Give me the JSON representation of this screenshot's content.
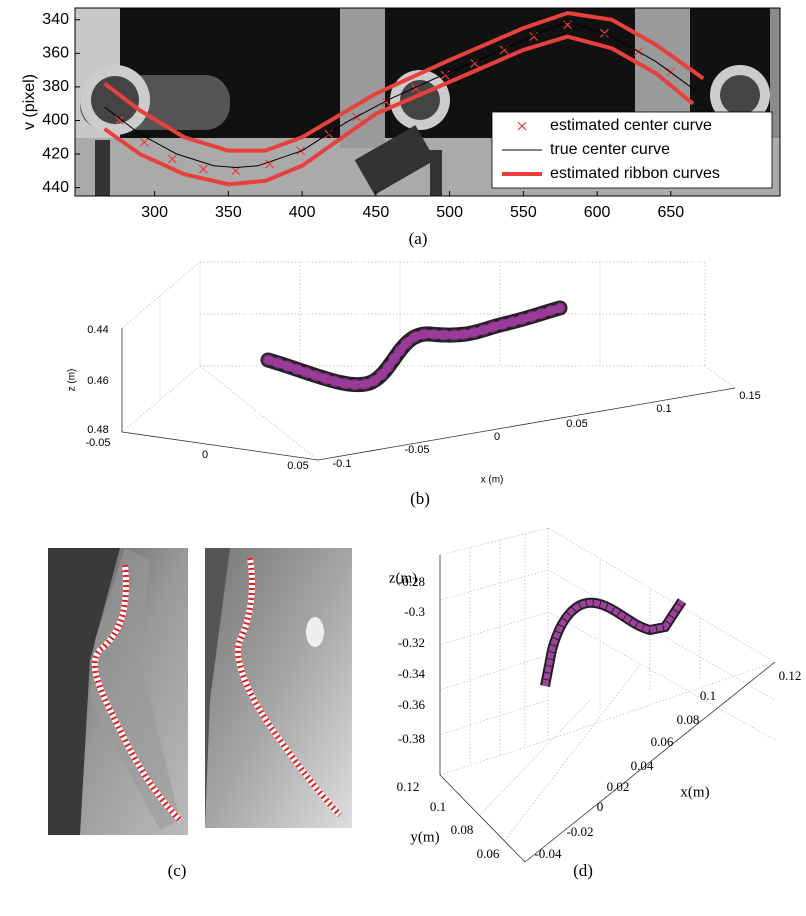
{
  "chart_data": {
    "type": "line",
    "ylabel": "v (pixel)",
    "xlim": [
      246,
      724
    ],
    "ylim": [
      333,
      445
    ],
    "y_reversed": true,
    "xticks": [
      300,
      350,
      400,
      450,
      500,
      550,
      600,
      650
    ],
    "yticks": [
      340,
      360,
      380,
      400,
      420,
      440
    ],
    "legend": "lower right",
    "series": [
      {
        "name": "estimated center curve",
        "color": "#e8413c",
        "marker": "x",
        "x": [
          276,
          293,
          312,
          333,
          355,
          378,
          399,
          418,
          437,
          457,
          477,
          497,
          517,
          537,
          557,
          580,
          605,
          628,
          650
        ],
        "values": [
          400,
          413,
          423,
          429,
          430,
          426,
          418,
          408,
          398,
          389,
          381,
          373,
          366,
          358,
          350,
          343,
          348,
          359,
          371
        ]
      },
      {
        "name": "true center curve",
        "color": "#000000",
        "x": [
          266,
          290,
          315,
          340,
          355,
          370,
          400,
          430,
          460,
          490,
          520,
          550,
          580,
          610,
          640,
          668
        ],
        "values": [
          392,
          408,
          420,
          427,
          428,
          427,
          418,
          401,
          387,
          375,
          364,
          352,
          341,
          350,
          365,
          383
        ]
      },
      {
        "name": "estimated ribbon curves",
        "color": "#e8413c",
        "x": [
          266,
          290,
          320,
          350,
          375,
          400,
          450,
          500,
          550,
          580,
          610,
          640,
          672
        ],
        "values": [
          378,
          394,
          410,
          418,
          418,
          410,
          384,
          364,
          345,
          336,
          340,
          355,
          375
        ]
      },
      {
        "color": "#e8413c",
        "x": [
          266,
          290,
          320,
          350,
          375,
          400,
          450,
          500,
          550,
          580,
          610,
          640,
          665
        ],
        "values": [
          405,
          420,
          432,
          438,
          436,
          427,
          396,
          377,
          358,
          350,
          357,
          372,
          390
        ]
      }
    ]
  },
  "panel_b": {
    "zlabel": "z (m)",
    "xlabel": "x (m)",
    "zticks": [
      0.44,
      0.46,
      0.48
    ],
    "yticks": [
      -0.05,
      0,
      0.05
    ],
    "xticks": [
      -0.1,
      -0.05,
      0,
      0.05,
      0.1,
      0.15
    ]
  },
  "panel_d": {
    "zlabel": "z(m)",
    "ylabel": "y(m)",
    "xlabel": "x(m)",
    "zticks": [
      -0.28,
      -0.3,
      -0.32,
      -0.34,
      -0.36,
      -0.38
    ],
    "yticks": [
      0.12,
      0.1,
      0.08,
      0.06
    ],
    "xticks": [
      -0.04,
      -0.02,
      0,
      0.02,
      0.04,
      0.06,
      0.08,
      0.1,
      0.12
    ]
  },
  "captions": [
    "(a)",
    "(b)",
    "(c)",
    "(d)"
  ]
}
